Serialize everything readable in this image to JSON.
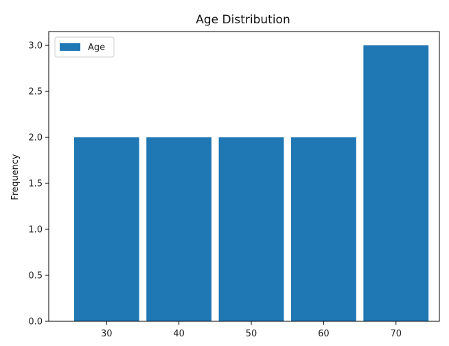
{
  "chart_data": {
    "type": "bar",
    "title": "Age Distribution",
    "xlabel": "",
    "ylabel": "Frequency",
    "categories": [
      "30",
      "40",
      "50",
      "60",
      "70"
    ],
    "x": [
      30,
      40,
      50,
      60,
      70
    ],
    "series": [
      {
        "name": "Age",
        "values": [
          2,
          2,
          2,
          2,
          3
        ],
        "color": "#1f77b4"
      }
    ],
    "xlim": [
      22,
      76
    ],
    "ylim": [
      0,
      3.15
    ],
    "yticks": [
      0.0,
      0.5,
      1.0,
      1.5,
      2.0,
      2.5,
      3.0
    ],
    "ytick_labels": [
      "0.0",
      "0.5",
      "1.0",
      "1.5",
      "2.0",
      "2.5",
      "3.0"
    ],
    "bar_width": 9,
    "grid": false,
    "legend": "top-left"
  }
}
